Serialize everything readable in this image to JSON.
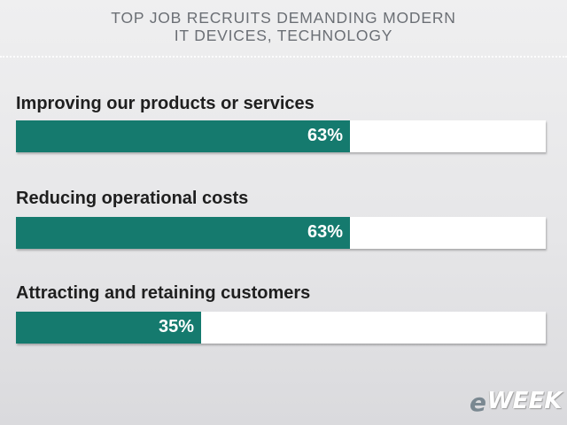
{
  "header": {
    "title_line1": "TOP JOB RECRUITS DEMANDING MODERN",
    "title_line2": "IT DEVICES, TECHNOLOGY"
  },
  "chart_data": {
    "type": "bar",
    "orientation": "horizontal",
    "title": "TOP JOB RECRUITS DEMANDING MODERN IT DEVICES, TECHNOLOGY",
    "categories": [
      "Improving our products or services",
      "Reducing operational costs",
      "Attracting and retaining customers"
    ],
    "values": [
      63,
      63,
      35
    ],
    "value_labels": [
      "63%",
      "63%",
      "35%"
    ],
    "unit": "%",
    "xlim": [
      0,
      100
    ],
    "grid": false,
    "legend": "none",
    "colors": {
      "bar": "#157a6e",
      "track": "#ffffff"
    }
  },
  "logo": {
    "e": "e",
    "rest": "WEEK"
  }
}
